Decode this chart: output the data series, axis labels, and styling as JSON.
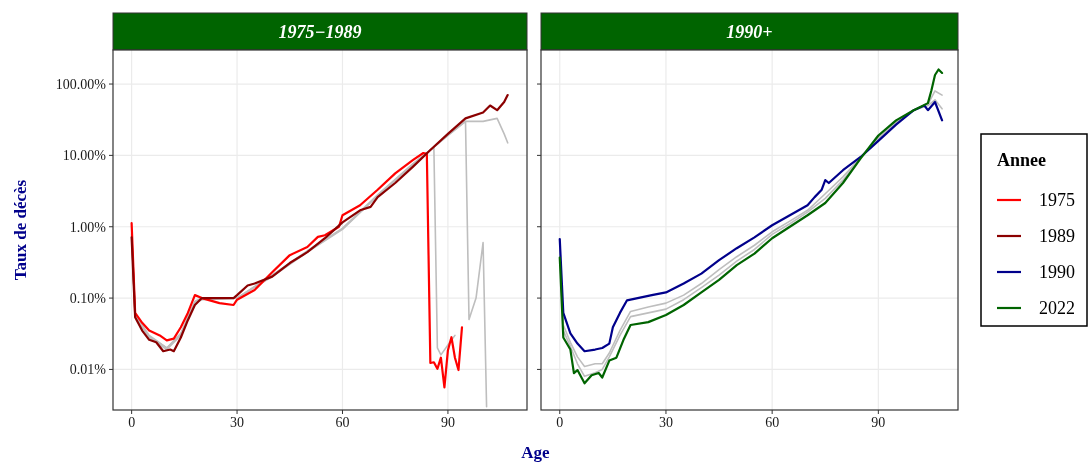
{
  "chart_data": [
    {
      "type": "line",
      "title": "1975−1989",
      "ylabel": "Taux de décès",
      "xlabel": "Age",
      "log": "y",
      "grid": true,
      "legend": "right",
      "xlim": [
        -5.3,
        112.5
      ],
      "xticks": [
        0,
        30,
        60,
        90
      ],
      "ylim": [
        0.0027,
        300
      ],
      "yticks": [
        {
          "value": 0.01,
          "label": "0.01%"
        },
        {
          "value": 0.1,
          "label": "0.10%"
        },
        {
          "value": 1,
          "label": "1.00%"
        },
        {
          "value": 10,
          "label": "10.00%"
        },
        {
          "value": 100,
          "label": "100.00%"
        }
      ],
      "series": [
        {
          "color": "#bebebe",
          "x": [
            0,
            1,
            5,
            10,
            14,
            18,
            20,
            30,
            40,
            50,
            60,
            70,
            80,
            86,
            87,
            88,
            90,
            92
          ],
          "values": [
            0.8,
            0.058,
            0.03,
            0.02,
            0.032,
            0.09,
            0.1,
            0.1,
            0.21,
            0.46,
            0.95,
            2.8,
            7.6,
            13,
            0.02,
            0.016,
            0.022,
            0.03
          ]
        },
        {
          "color": "#bebebe",
          "x": [
            0,
            1,
            5,
            10,
            14,
            18,
            20,
            30,
            40,
            50,
            60,
            70,
            80,
            90,
            95,
            96,
            98,
            100,
            101
          ],
          "values": [
            0.75,
            0.055,
            0.028,
            0.019,
            0.03,
            0.085,
            0.095,
            0.1,
            0.2,
            0.44,
            0.92,
            2.7,
            7.4,
            19,
            30,
            0.05,
            0.1,
            0.6,
            0.003
          ]
        },
        {
          "color": "#bebebe",
          "x": [
            0,
            1,
            5,
            10,
            14,
            18,
            20,
            30,
            40,
            50,
            60,
            70,
            80,
            90,
            95,
            100,
            104,
            106,
            107
          ],
          "values": [
            0.78,
            0.056,
            0.029,
            0.02,
            0.031,
            0.088,
            0.098,
            0.1,
            0.21,
            0.45,
            0.94,
            2.75,
            7.5,
            19,
            30,
            30,
            33,
            20,
            15
          ]
        },
        {
          "name": "1975",
          "color": "#ff0000",
          "x": [
            0,
            1,
            3,
            5,
            8,
            10,
            12,
            14,
            16,
            18,
            20,
            25,
            29,
            30,
            35,
            40,
            45,
            50,
            53,
            55,
            59,
            60,
            65,
            70,
            75,
            80,
            83,
            84,
            85,
            86,
            87,
            88,
            89,
            90,
            91,
            92,
            93,
            94
          ],
          "values": [
            1.12,
            0.062,
            0.045,
            0.035,
            0.03,
            0.0255,
            0.027,
            0.039,
            0.062,
            0.11,
            0.1,
            0.085,
            0.08,
            0.095,
            0.13,
            0.23,
            0.4,
            0.52,
            0.72,
            0.76,
            1.0,
            1.45,
            2.0,
            3.3,
            5.6,
            8.6,
            10.8,
            10.5,
            0.0123,
            0.0126,
            0.0102,
            0.0146,
            0.0056,
            0.0186,
            0.0283,
            0.0146,
            0.0098,
            0.039
          ]
        },
        {
          "name": "1989",
          "color": "#8b0000",
          "x": [
            0,
            1,
            3,
            5,
            7,
            9,
            11,
            12,
            14,
            16,
            18,
            20,
            25,
            29,
            30,
            33,
            35,
            40,
            45,
            50,
            55,
            60,
            65,
            68,
            70,
            75,
            80,
            85,
            90,
            95,
            100,
            102,
            104,
            106,
            107
          ],
          "values": [
            0.71,
            0.054,
            0.035,
            0.026,
            0.024,
            0.018,
            0.019,
            0.018,
            0.028,
            0.049,
            0.08,
            0.1,
            0.1,
            0.1,
            0.11,
            0.15,
            0.16,
            0.2,
            0.31,
            0.44,
            0.69,
            1.15,
            1.7,
            1.9,
            2.6,
            4.1,
            6.9,
            11.9,
            20,
            33,
            40,
            50,
            43,
            56,
            70
          ]
        }
      ]
    },
    {
      "type": "line",
      "title": "1990+",
      "legend": "right",
      "legend_title": "Annee",
      "log": "y",
      "grid": true,
      "tick_labels": "x",
      "xlim": [
        -5.3,
        112.5
      ],
      "xticks": [
        0,
        30,
        60,
        90
      ],
      "ylim": [
        0.0027,
        300
      ],
      "yticks": [
        {
          "value": 0.01,
          "label": null
        },
        {
          "value": 0.1,
          "label": null
        },
        {
          "value": 1,
          "label": null
        },
        {
          "value": 10,
          "label": null
        },
        {
          "value": 100,
          "label": null
        }
      ],
      "series": [
        {
          "color": "#bebebe",
          "x": [
            0,
            1,
            3,
            5,
            7,
            10,
            12,
            14,
            17,
            20,
            25,
            30,
            35,
            40,
            45,
            50,
            55,
            60,
            65,
            70,
            75,
            80,
            85,
            90,
            95,
            100,
            104,
            106,
            108
          ],
          "values": [
            0.5,
            0.042,
            0.024,
            0.015,
            0.011,
            0.012,
            0.012,
            0.017,
            0.035,
            0.065,
            0.075,
            0.085,
            0.11,
            0.16,
            0.25,
            0.38,
            0.55,
            0.85,
            1.2,
            1.7,
            2.9,
            5,
            9.3,
            17,
            29,
            43,
            50,
            60,
            45
          ]
        },
        {
          "color": "#bebebe",
          "x": [
            0,
            1,
            3,
            5,
            7,
            10,
            12,
            14,
            17,
            20,
            25,
            30,
            35,
            40,
            45,
            50,
            55,
            60,
            65,
            70,
            75,
            80,
            85,
            90,
            95,
            100,
            104,
            106,
            108
          ],
          "values": [
            0.45,
            0.035,
            0.021,
            0.012,
            0.008,
            0.009,
            0.01,
            0.015,
            0.03,
            0.055,
            0.062,
            0.07,
            0.095,
            0.14,
            0.21,
            0.33,
            0.48,
            0.78,
            1.1,
            1.6,
            2.5,
            4.5,
            9.2,
            18,
            30,
            43,
            52,
            80,
            70
          ]
        },
        {
          "name": "1990",
          "color": "#00008b",
          "x": [
            0,
            1,
            3,
            5,
            7,
            10,
            12,
            14,
            15,
            17,
            19,
            22,
            26,
            30,
            35,
            40,
            45,
            50,
            55,
            60,
            65,
            70,
            72,
            74,
            75,
            76,
            80,
            85,
            90,
            95,
            100,
            103,
            104,
            106,
            108
          ],
          "values": [
            0.67,
            0.062,
            0.032,
            0.023,
            0.018,
            0.019,
            0.02,
            0.023,
            0.039,
            0.062,
            0.093,
            0.1,
            0.11,
            0.12,
            0.16,
            0.22,
            0.34,
            0.5,
            0.71,
            1.05,
            1.45,
            2.0,
            2.6,
            3.3,
            4.5,
            4.1,
            6.2,
            9.5,
            16,
            27,
            43,
            50,
            43,
            56,
            31
          ]
        },
        {
          "name": "2022",
          "color": "#006400",
          "x": [
            0,
            1,
            3,
            4,
            5,
            7,
            9,
            11,
            12,
            14,
            16,
            18,
            20,
            25,
            30,
            35,
            40,
            45,
            50,
            55,
            60,
            65,
            70,
            75,
            80,
            85,
            90,
            95,
            100,
            104,
            105,
            106,
            107,
            108
          ],
          "values": [
            0.37,
            0.028,
            0.019,
            0.0089,
            0.0098,
            0.0064,
            0.0083,
            0.0089,
            0.0077,
            0.0133,
            0.0146,
            0.026,
            0.042,
            0.046,
            0.058,
            0.08,
            0.12,
            0.18,
            0.29,
            0.42,
            0.69,
            1.0,
            1.45,
            2.15,
            4.1,
            9.1,
            19,
            31,
            43,
            54,
            82,
            134,
            160,
            143
          ]
        }
      ]
    }
  ]
}
